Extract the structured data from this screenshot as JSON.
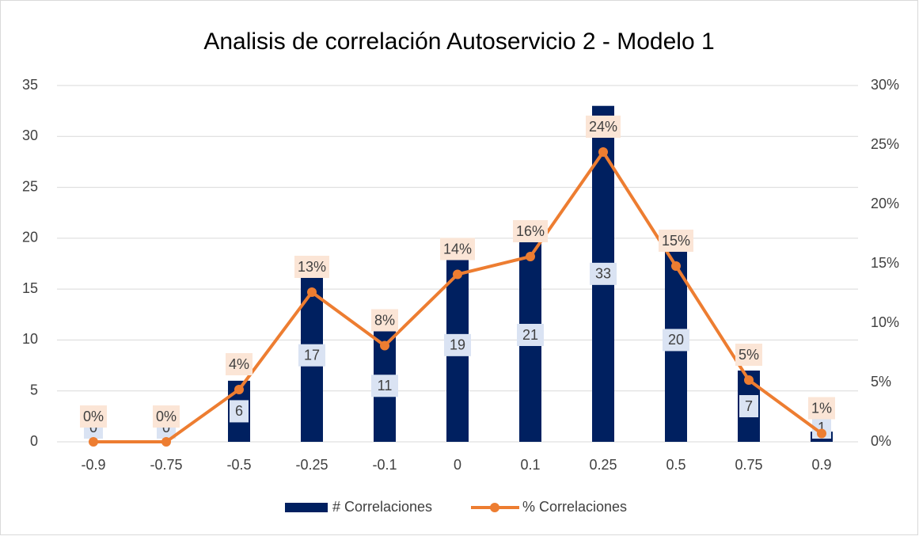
{
  "chart_data": {
    "type": "bar-line",
    "title": "Analisis de correlación Autoservicio 2 - Modelo 1",
    "categories": [
      "-0.9",
      "-0.75",
      "-0.5",
      "-0.25",
      "-0.1",
      "0",
      "0.1",
      "0.25",
      "0.5",
      "0.75",
      "0.9"
    ],
    "series": [
      {
        "name": "# Correlaciones",
        "type": "bar",
        "color": "#002060",
        "values": [
          0,
          0,
          6,
          17,
          11,
          19,
          21,
          33,
          20,
          7,
          1
        ]
      },
      {
        "name": "% Correlaciones",
        "type": "line",
        "axis": "y2",
        "color": "#ed7d31",
        "values": [
          0,
          0,
          4.4,
          12.6,
          8.1,
          14.1,
          15.6,
          24.4,
          14.8,
          5.2,
          0.7
        ],
        "value_labels": [
          "0%",
          "0%",
          "4%",
          "13%",
          "8%",
          "14%",
          "16%",
          "24%",
          "15%",
          "5%",
          "1%"
        ]
      }
    ],
    "ylim": [
      0,
      35
    ],
    "yticks": [
      0,
      5,
      10,
      15,
      20,
      25,
      30,
      35
    ],
    "y2lim": [
      0,
      30
    ],
    "y2ticks": [
      {
        "value": 0,
        "label": "0%"
      },
      {
        "value": 5,
        "label": "5%"
      },
      {
        "value": 10,
        "label": "10%"
      },
      {
        "value": 15,
        "label": "15%"
      },
      {
        "value": 20,
        "label": "20%"
      },
      {
        "value": 25,
        "label": "25%"
      },
      {
        "value": 30,
        "label": "30%"
      }
    ],
    "grid": true,
    "legend": "bottom"
  }
}
